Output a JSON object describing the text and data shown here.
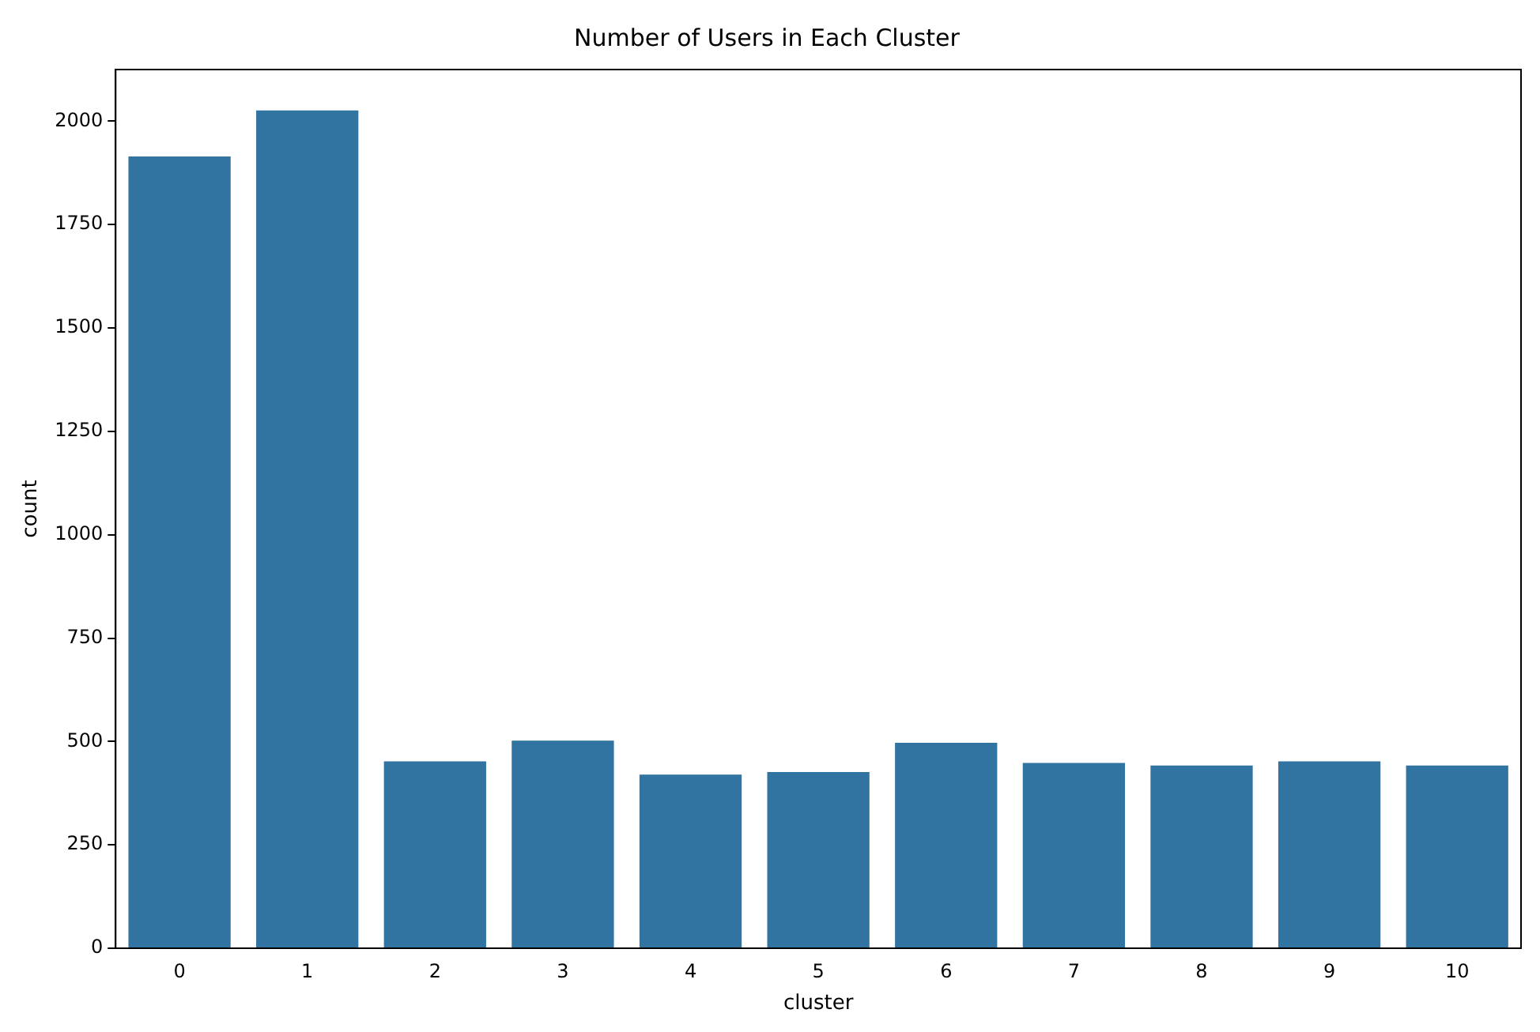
{
  "chart_data": {
    "type": "bar",
    "title": "Number of Users in Each Cluster",
    "xlabel": "cluster",
    "ylabel": "count",
    "categories": [
      "0",
      "1",
      "2",
      "3",
      "4",
      "5",
      "6",
      "7",
      "8",
      "9",
      "10"
    ],
    "values": [
      1915,
      2026,
      452,
      502,
      420,
      426,
      497,
      448,
      442,
      452,
      442
    ],
    "color": "#3274a1",
    "ylim": [
      0,
      2125
    ],
    "yticks": [
      0,
      250,
      500,
      750,
      1000,
      1250,
      1500,
      1750,
      2000
    ],
    "grid": false,
    "legend": false
  }
}
